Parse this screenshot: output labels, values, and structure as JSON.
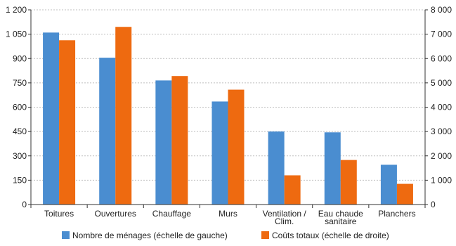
{
  "chart_data": {
    "type": "bar",
    "title": "",
    "categories": [
      [
        "Toitures"
      ],
      [
        "Ouvertures"
      ],
      [
        "Chauffage"
      ],
      [
        "Murs"
      ],
      [
        "Ventilation /",
        "Clim."
      ],
      [
        "Eau chaude",
        "sanitaire"
      ],
      [
        "Planchers"
      ]
    ],
    "series": [
      {
        "name": "Nombre de ménages (échelle de gauche)",
        "axis": "left",
        "color": "#4A8DD0",
        "values": [
          1060,
          905,
          765,
          635,
          450,
          445,
          245
        ]
      },
      {
        "name": "Coûts totaux (échelle de droite)",
        "axis": "right",
        "color": "#EE6A10",
        "values": [
          6750,
          7300,
          5280,
          4720,
          1200,
          1830,
          850
        ]
      }
    ],
    "y_left": {
      "range": [
        0,
        1200
      ],
      "ticks": [
        0,
        150,
        300,
        450,
        600,
        750,
        900,
        1050,
        1200
      ],
      "tick_labels": [
        "0",
        "150",
        "300",
        "450",
        "600",
        "750",
        "900",
        "1 050",
        "1 200"
      ]
    },
    "y_right": {
      "range": [
        0,
        8000
      ],
      "ticks": [
        0,
        1000,
        2000,
        3000,
        4000,
        5000,
        6000,
        7000,
        8000
      ],
      "tick_labels": [
        "0",
        "1 000",
        "2 000",
        "3 000",
        "4 000",
        "5 000",
        "6 000",
        "7 000",
        "8 000"
      ]
    },
    "grid": true,
    "legend_position": "bottom"
  }
}
